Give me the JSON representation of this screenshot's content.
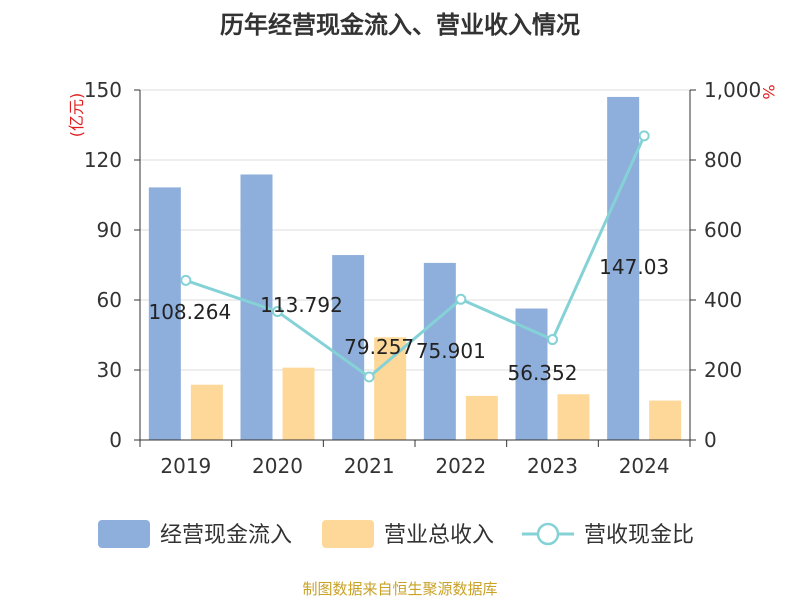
{
  "chart_data": {
    "type": "bar",
    "title": "历年经营现金流入、营业收入情况",
    "categories": [
      "2019",
      "2020",
      "2021",
      "2022",
      "2023",
      "2024"
    ],
    "series": [
      {
        "name": "经营现金流入",
        "type": "bar",
        "axis": "left",
        "color": "#8eaedb",
        "values": [
          108.264,
          113.792,
          79.257,
          75.901,
          56.352,
          147.03
        ]
      },
      {
        "name": "营业总收入",
        "type": "bar",
        "axis": "left",
        "color": "#fdd898",
        "values": [
          23.7,
          31.0,
          44.0,
          18.9,
          19.6,
          16.9
        ]
      },
      {
        "name": "营收现金比",
        "type": "line",
        "axis": "right",
        "color": "#85d2d6",
        "values": [
          456,
          367,
          180,
          402,
          287,
          869
        ]
      }
    ],
    "data_labels": [
      "108.264",
      "113.792",
      "79.257",
      "75.901",
      "56.352",
      "147.03"
    ],
    "y_left": {
      "unit": "(亿元)",
      "ylim": [
        0,
        150
      ],
      "ticks": [
        "0",
        "30",
        "60",
        "90",
        "120",
        "150"
      ]
    },
    "y_right": {
      "unit": "%",
      "ylim": [
        0,
        1000
      ],
      "ticks": [
        "0",
        "200",
        "400",
        "600",
        "800",
        "1,000"
      ]
    },
    "legend_position": "bottom",
    "grid": "horizontal",
    "source": "制图数据来自恒生聚源数据库"
  }
}
